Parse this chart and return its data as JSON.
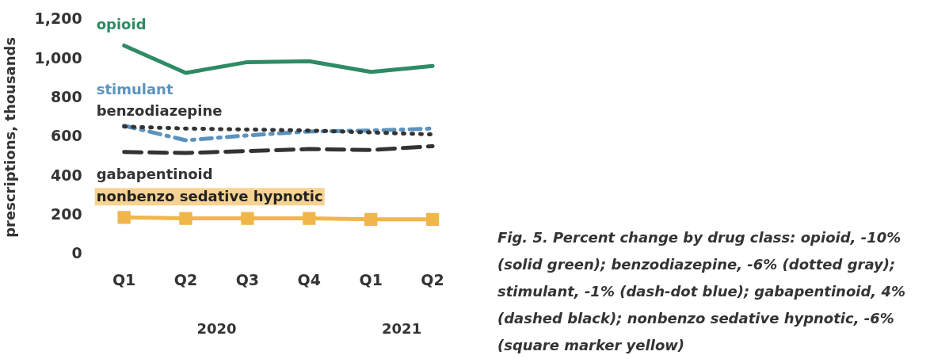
{
  "chart_data": {
    "type": "line",
    "ylabel": "prescriptions, thousands",
    "categories": [
      "Q1",
      "Q2",
      "Q3",
      "Q4",
      "Q1",
      "Q2"
    ],
    "series": [
      {
        "name": "opioid",
        "color": "#2e8b64",
        "line_style": "solid",
        "marker": "none",
        "values": [
          1070,
          930,
          985,
          990,
          935,
          965
        ]
      },
      {
        "name": "benzodiazepine",
        "color": "#333333",
        "line_style": "dotted",
        "marker": "none",
        "values": [
          655,
          645,
          640,
          635,
          625,
          615
        ]
      },
      {
        "name": "stimulant",
        "color": "#5b93bd",
        "line_style": "dashdot",
        "marker": "none",
        "values": [
          660,
          585,
          610,
          630,
          635,
          645
        ]
      },
      {
        "name": "gabapentinoid",
        "color": "#333333",
        "line_style": "dashed",
        "marker": "none",
        "values": [
          525,
          520,
          530,
          540,
          535,
          555
        ]
      },
      {
        "name": "nonbenzo sedative hypnotic",
        "color": "#f0b64a",
        "line_style": "solid",
        "marker": "square",
        "values": [
          190,
          185,
          185,
          185,
          180,
          180
        ]
      }
    ],
    "ylim": [
      0,
      1200
    ],
    "yticks": [
      0,
      200,
      400,
      600,
      800,
      {
        "value": 1000,
        "label": "1,000"
      },
      {
        "value": 1200,
        "label": "1,200"
      }
    ],
    "grid": false,
    "legend": false,
    "annotations": [
      "2020",
      "2021",
      "Fig. 5. Percent change by drug class: opioid, -10% (solid green); benzodiazepine, -6% (dotted gray); stimulant, -1% (dash-dot blue); gabapentinoid, 4% (dashed black); nonbenzo sedative hypnotic, -6% (square marker yellow)"
    ]
  }
}
